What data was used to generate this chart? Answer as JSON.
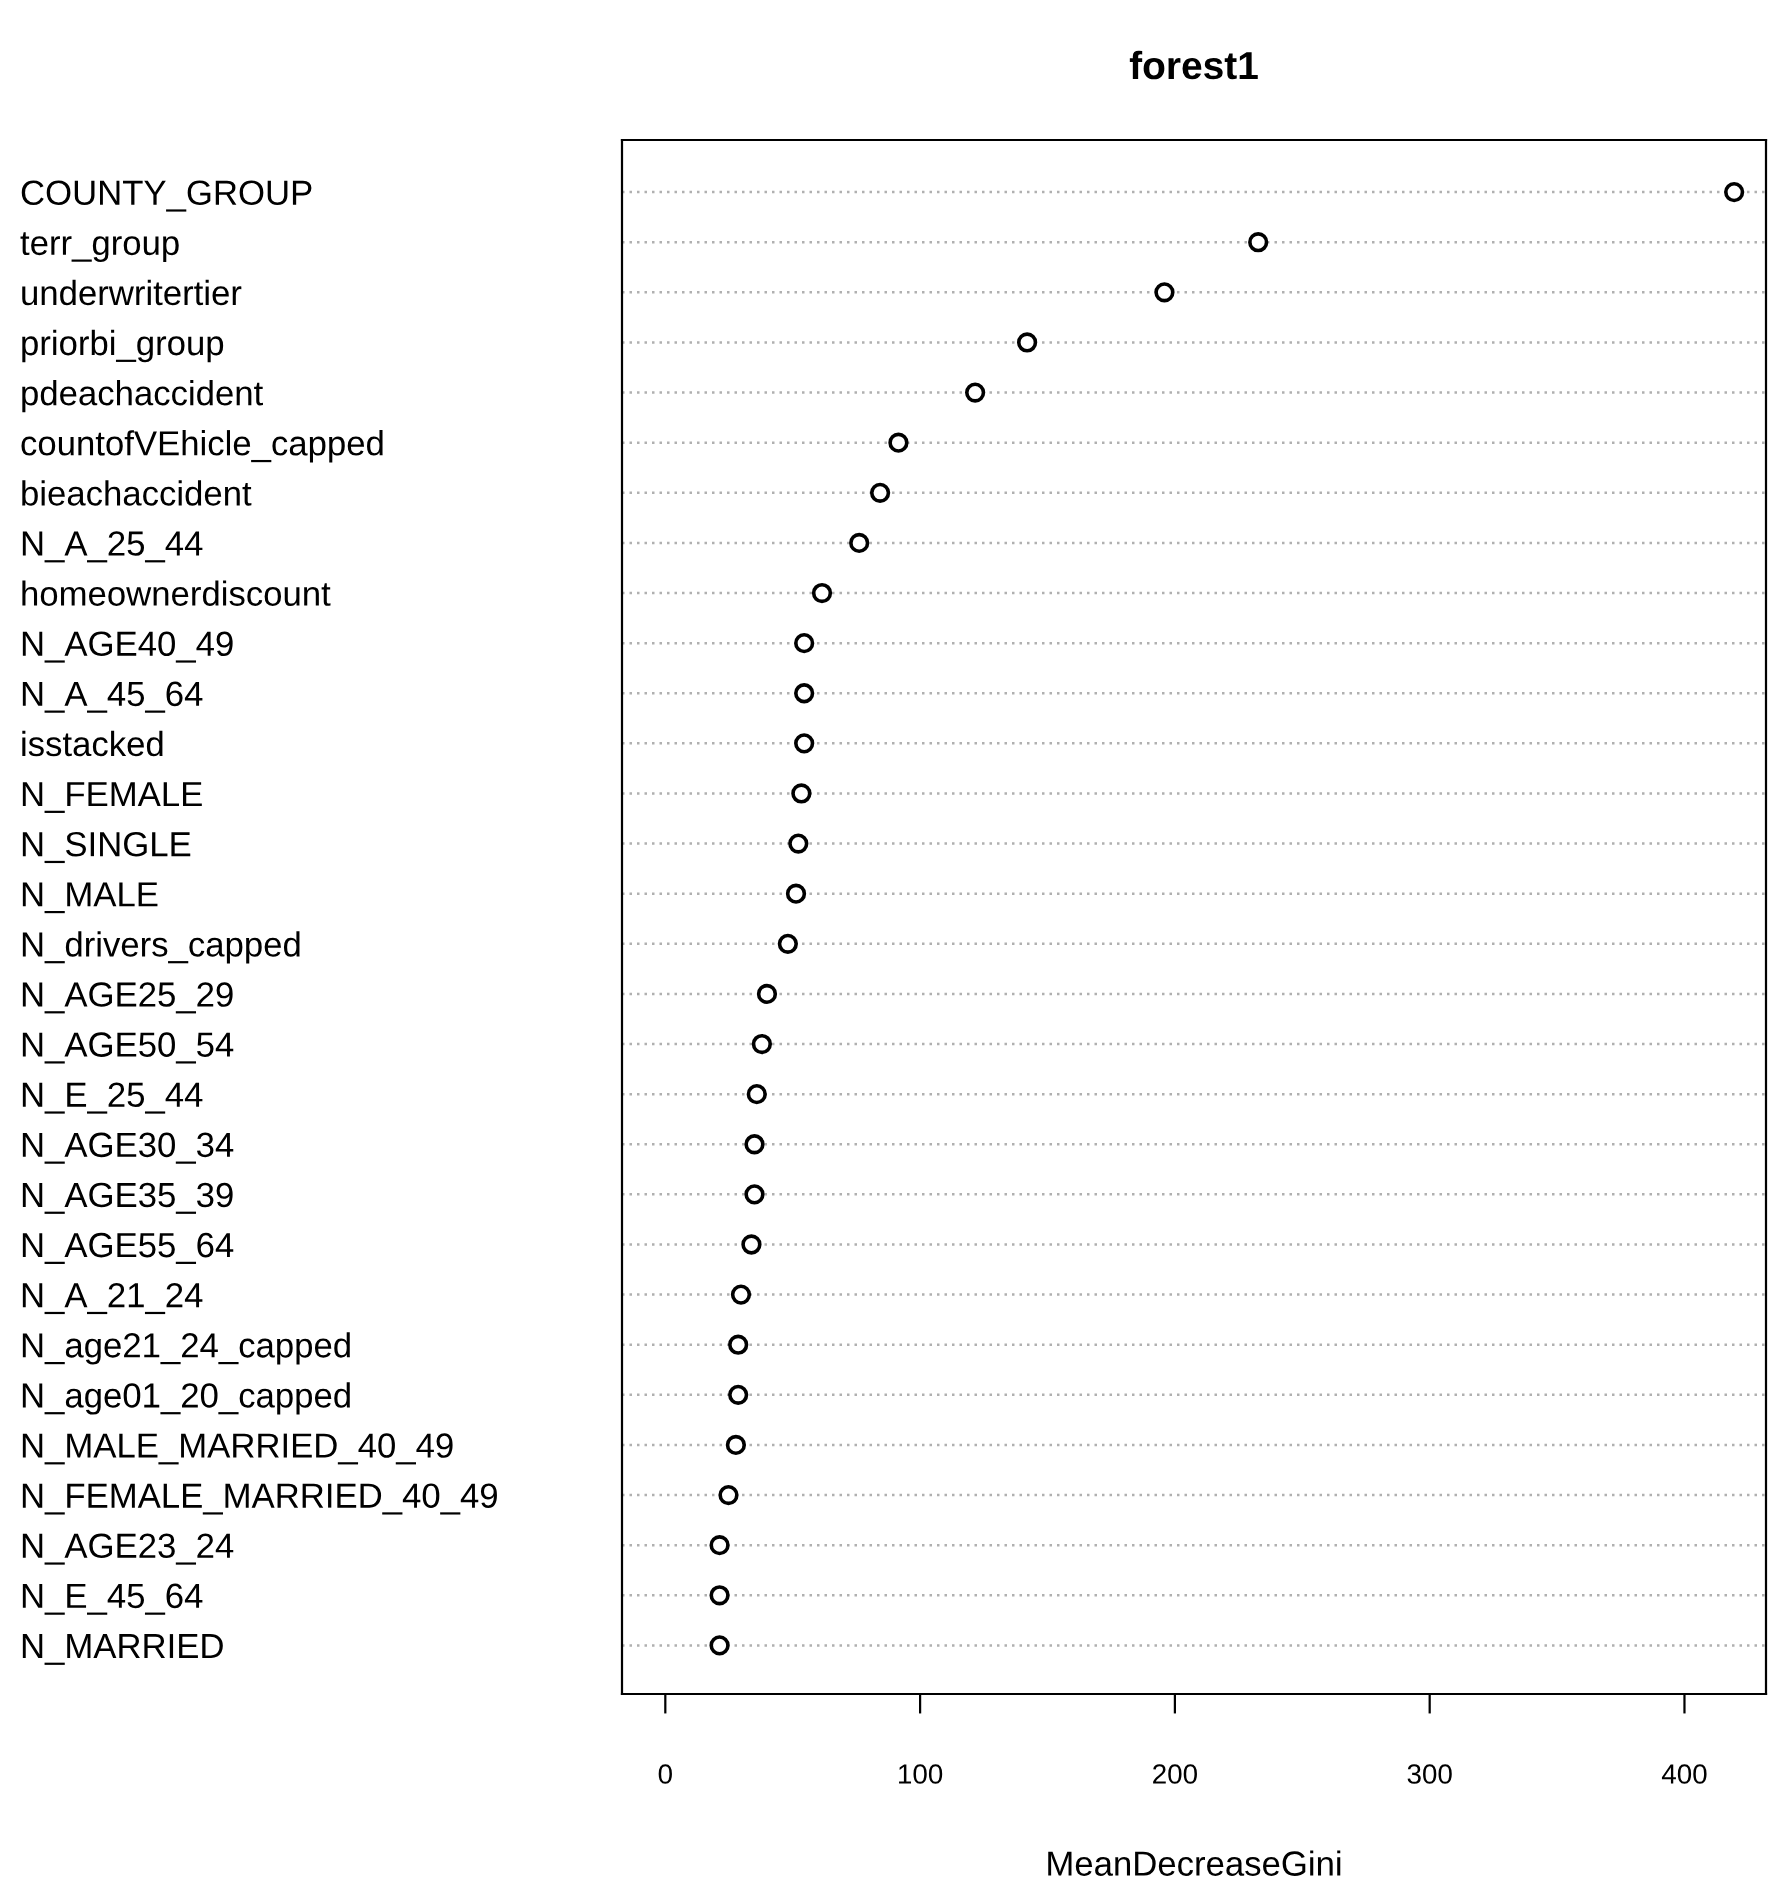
{
  "chart_data": {
    "type": "scatter",
    "title": "forest1",
    "xlabel": "MeanDecreaseGini",
    "categories": [
      "COUNTY_GROUP",
      "terr_group",
      "underwritertier",
      "priorbi_group",
      "pdeachaccident",
      "countofVEhicle_capped",
      "bieachaccident",
      "N_A_25_44",
      "homeownerdiscount",
      "N_AGE40_49",
      "N_A_45_64",
      "isstacked",
      "N_FEMALE",
      "N_SINGLE",
      "N_MALE",
      "N_drivers_capped",
      "N_AGE25_29",
      "N_AGE50_54",
      "N_E_25_44",
      "N_AGE30_34",
      "N_AGE35_39",
      "N_AGE55_64",
      "N_A_21_24",
      "N_age21_24_capped",
      "N_age01_20_capped",
      "N_MALE_MARRIED_40_49",
      "N_FEMALE_MARRIED_40_49",
      "N_AGE23_24",
      "N_E_45_64",
      "N_MARRIED"
    ],
    "values": [
      419.5,
      232.7,
      195.9,
      142,
      121.6,
      91.5,
      84.3,
      76.1,
      61.5,
      54.5,
      54.5,
      54.5,
      53.4,
      52.2,
      51.3,
      48.1,
      39.9,
      37.9,
      35.9,
      35,
      35,
      33.8,
      29.7,
      28.6,
      28.6,
      27.7,
      24.8,
      21.3,
      21.3,
      21.3
    ],
    "color": "#000000",
    "orientation": "horizontal",
    "marker": "circle",
    "grid": "y",
    "legend": false,
    "xlim": [
      -17,
      432
    ],
    "xticks": [
      0,
      100,
      200,
      300,
      400
    ]
  }
}
